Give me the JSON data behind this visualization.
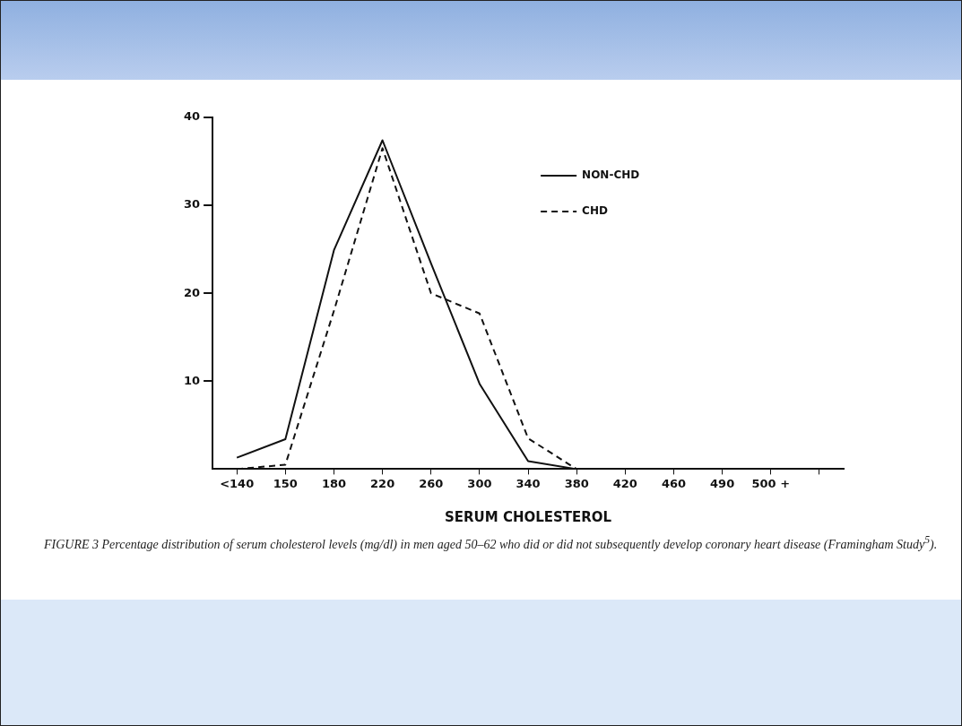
{
  "chart_data": {
    "type": "line",
    "xlabel": "SERUM CHOLESTEROL",
    "categories": [
      "<140",
      "150",
      "180",
      "220",
      "260",
      "300",
      "340",
      "380",
      "420",
      "460",
      "490",
      "500 +",
      null
    ],
    "series": [
      {
        "name": "NON-CHD",
        "color": "#111111",
        "line_style": "solid",
        "values": [
          1.3,
          3.4,
          24.9,
          37.4,
          23.4,
          9.7,
          0.9,
          0,
          null,
          null,
          null,
          null,
          null
        ]
      },
      {
        "name": "CHD",
        "color": "#111111",
        "line_style": "dashed",
        "values": [
          0,
          0.5,
          18,
          36.5,
          20,
          17.7,
          3.5,
          0,
          null,
          null,
          null,
          null,
          null
        ]
      }
    ],
    "ylim": [
      0,
      40
    ],
    "yticks": [
      10,
      20,
      30,
      40
    ],
    "grid": false,
    "legend": "top right",
    "marker": "none",
    "annotations": [
      "FIGURE 3 Percentage distribution of serum cholesterol levels (mg/dl) in men aged 50–62 who did or did not subsequently develop coronary heart disease (Framingham Study$^{5}$)."
    ]
  }
}
